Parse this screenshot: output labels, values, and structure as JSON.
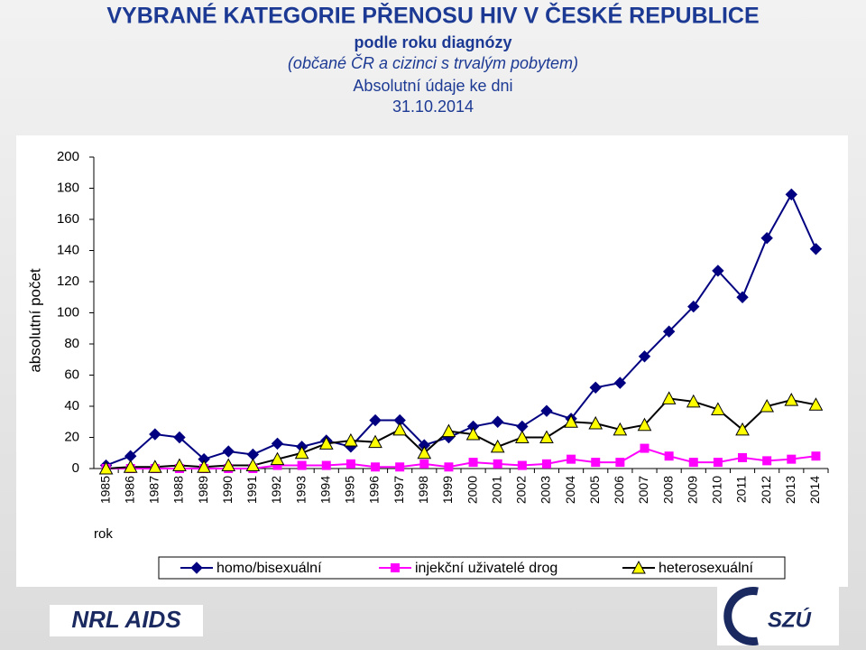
{
  "chart_data": {
    "type": "line",
    "title": "VYBRANÉ KATEGORIE PŘENOSU HIV V ČESKÉ REPUBLICE",
    "subtitle": [
      "podle roku diagnózy",
      "(občané ČR a cizinci s trvalým pobytem)",
      "Absolutní údaje ke dni",
      "31.10.2014"
    ],
    "x_label": "rok",
    "y_label": "absolutní počet",
    "categories": [
      "1985",
      "1986",
      "1987",
      "1988",
      "1989",
      "1990",
      "1991",
      "1992",
      "1993",
      "1994",
      "1995",
      "1996",
      "1997",
      "1998",
      "1999",
      "2000",
      "2001",
      "2002",
      "2003",
      "2004",
      "2005",
      "2006",
      "2007",
      "2008",
      "2009",
      "2010",
      "2011",
      "2012",
      "2013",
      "2014"
    ],
    "series": [
      {
        "name": "homo/bisexuální",
        "color": "#000080",
        "marker": "diamond",
        "values": [
          2,
          8,
          22,
          20,
          6,
          11,
          9,
          16,
          14,
          18,
          14,
          31,
          31,
          15,
          20,
          27,
          30,
          27,
          37,
          32,
          52,
          55,
          72,
          88,
          104,
          127,
          110,
          148,
          176,
          141
        ]
      },
      {
        "name": "injekční uživatelé drog",
        "color": "#ff00ff",
        "marker": "square",
        "values": [
          0,
          0,
          0,
          0,
          0,
          0,
          0,
          2,
          2,
          2,
          3,
          1,
          1,
          3,
          1,
          4,
          3,
          2,
          3,
          6,
          4,
          4,
          13,
          8,
          4,
          4,
          7,
          5,
          6,
          8
        ]
      },
      {
        "name": "heterosexuální",
        "color": "#000000",
        "marker_color": "#ffff00",
        "marker": "triangle",
        "values": [
          0,
          1,
          1,
          2,
          1,
          2,
          2,
          6,
          10,
          16,
          18,
          17,
          25,
          10,
          24,
          22,
          14,
          20,
          20,
          30,
          29,
          25,
          28,
          45,
          43,
          38,
          25,
          40,
          44,
          41
        ]
      }
    ],
    "ylim": [
      0,
      200
    ],
    "yticks": [
      0,
      20,
      40,
      60,
      80,
      100,
      120,
      140,
      160,
      180,
      200
    ],
    "grid": false,
    "legend": "bottom"
  },
  "logos": [
    "NRL AIDS",
    "SZÚ"
  ]
}
